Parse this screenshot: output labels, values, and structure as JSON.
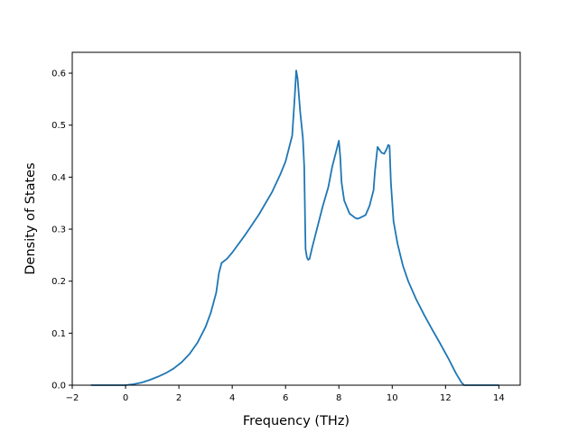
{
  "chart_data": {
    "type": "line",
    "title": "",
    "xlabel": "Frequency (THz)",
    "ylabel": "Density of States",
    "xlim": [
      -2,
      14.8
    ],
    "ylim": [
      0.0,
      0.64
    ],
    "xticks": [
      -2,
      0,
      2,
      4,
      6,
      8,
      10,
      12,
      14
    ],
    "xtick_labels": [
      "−2",
      "0",
      "2",
      "4",
      "6",
      "8",
      "10",
      "12",
      "14"
    ],
    "yticks": [
      0.0,
      0.1,
      0.2,
      0.3,
      0.4,
      0.5,
      0.6
    ],
    "ytick_labels": [
      "0.0",
      "0.1",
      "0.2",
      "0.3",
      "0.4",
      "0.5",
      "0.6"
    ],
    "grid": false,
    "colors": {
      "line": "#1f77b4",
      "axes": "#000000",
      "background": "#ffffff"
    },
    "series": [
      {
        "x": [
          -1.3,
          -1.0,
          -0.5,
          0.0,
          0.3,
          0.6,
          0.9,
          1.2,
          1.5,
          1.8,
          2.1,
          2.4,
          2.7,
          3.0,
          3.2,
          3.4,
          3.5,
          3.6,
          3.8,
          4.0,
          4.5,
          5.0,
          5.5,
          5.8,
          6.0,
          6.15,
          6.25,
          6.3,
          6.35,
          6.4,
          6.45,
          6.55,
          6.65,
          6.7,
          6.75,
          6.8,
          6.85,
          6.9,
          7.0,
          7.2,
          7.4,
          7.6,
          7.75,
          7.9,
          8.0,
          8.05,
          8.1,
          8.2,
          8.4,
          8.6,
          8.7,
          8.8,
          9.0,
          9.15,
          9.3,
          9.35,
          9.45,
          9.6,
          9.7,
          9.8,
          9.85,
          9.9,
          9.95,
          10.05,
          10.2,
          10.4,
          10.6,
          10.9,
          11.2,
          11.5,
          11.8,
          12.1,
          12.4,
          12.6,
          12.7,
          12.75,
          12.8,
          13.0,
          13.5,
          14.0
        ],
        "y": [
          0.0,
          0.0,
          0.0,
          0.0,
          0.002,
          0.005,
          0.01,
          0.016,
          0.023,
          0.032,
          0.044,
          0.06,
          0.082,
          0.112,
          0.14,
          0.178,
          0.215,
          0.235,
          0.243,
          0.255,
          0.29,
          0.328,
          0.372,
          0.405,
          0.43,
          0.46,
          0.48,
          0.52,
          0.56,
          0.605,
          0.59,
          0.525,
          0.475,
          0.42,
          0.262,
          0.246,
          0.241,
          0.243,
          0.265,
          0.305,
          0.345,
          0.38,
          0.42,
          0.45,
          0.47,
          0.44,
          0.39,
          0.355,
          0.33,
          0.322,
          0.32,
          0.322,
          0.327,
          0.345,
          0.375,
          0.41,
          0.458,
          0.447,
          0.445,
          0.455,
          0.462,
          0.46,
          0.39,
          0.315,
          0.272,
          0.23,
          0.2,
          0.165,
          0.135,
          0.107,
          0.08,
          0.052,
          0.022,
          0.005,
          0.0,
          0.0,
          0.0,
          0.0,
          0.0,
          0.0
        ]
      }
    ]
  }
}
